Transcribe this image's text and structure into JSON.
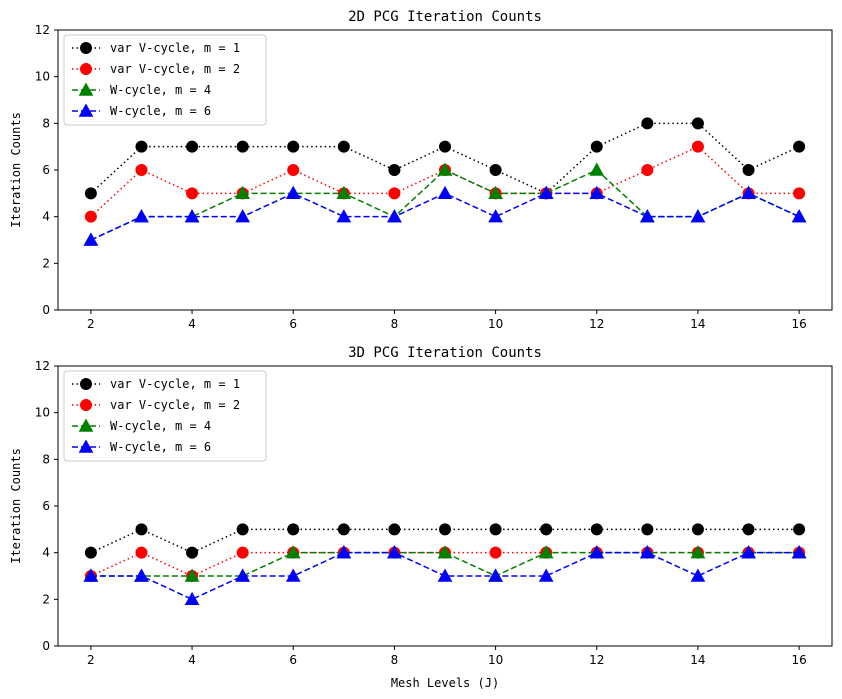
{
  "chart_data": [
    {
      "type": "line",
      "title": "2D PCG Iteration Counts",
      "xlabel": "",
      "ylabel": "Iteration Counts",
      "x": [
        2,
        3,
        4,
        5,
        6,
        7,
        8,
        9,
        10,
        11,
        12,
        13,
        14,
        15,
        16
      ],
      "xticks": [
        2,
        4,
        6,
        8,
        10,
        12,
        14,
        16
      ],
      "yticks": [
        0,
        2,
        4,
        6,
        8,
        10,
        12
      ],
      "xlim": [
        1.35,
        16.65
      ],
      "ylim": [
        0,
        12
      ],
      "grid": false,
      "legend_position": "top-left",
      "series": [
        {
          "name": "var V-cycle, m = 1",
          "color": "#000000",
          "linestyle": "dotted",
          "marker": "circle",
          "values": [
            5,
            7,
            7,
            7,
            7,
            7,
            6,
            7,
            6,
            5,
            7,
            8,
            8,
            6,
            7
          ]
        },
        {
          "name": "var V-cycle, m = 2",
          "color": "#ff0000",
          "linestyle": "dotted",
          "marker": "circle",
          "values": [
            4,
            6,
            5,
            5,
            6,
            5,
            5,
            6,
            5,
            5,
            5,
            6,
            7,
            5,
            5
          ]
        },
        {
          "name": "W-cycle, m = 4",
          "color": "#008000",
          "linestyle": "dashed",
          "marker": "triangle",
          "values": [
            3,
            4,
            4,
            5,
            5,
            5,
            4,
            6,
            5,
            5,
            6,
            4,
            4,
            5,
            4
          ]
        },
        {
          "name": "W-cycle, m = 6",
          "color": "#0000ff",
          "linestyle": "dashed",
          "marker": "triangle",
          "values": [
            3,
            4,
            4,
            4,
            5,
            4,
            4,
            5,
            4,
            5,
            5,
            4,
            4,
            5,
            4
          ]
        }
      ]
    },
    {
      "type": "line",
      "title": "3D PCG Iteration Counts",
      "xlabel": "Mesh Levels (J)",
      "ylabel": "Iteration Counts",
      "x": [
        2,
        3,
        4,
        5,
        6,
        7,
        8,
        9,
        10,
        11,
        12,
        13,
        14,
        15,
        16
      ],
      "xticks": [
        2,
        4,
        6,
        8,
        10,
        12,
        14,
        16
      ],
      "yticks": [
        0,
        2,
        4,
        6,
        8,
        10,
        12
      ],
      "xlim": [
        1.35,
        16.65
      ],
      "ylim": [
        0,
        12
      ],
      "grid": false,
      "legend_position": "top-left",
      "series": [
        {
          "name": "var V-cycle, m = 1",
          "color": "#000000",
          "linestyle": "dotted",
          "marker": "circle",
          "values": [
            4,
            5,
            4,
            5,
            5,
            5,
            5,
            5,
            5,
            5,
            5,
            5,
            5,
            5,
            5
          ]
        },
        {
          "name": "var V-cycle, m = 2",
          "color": "#ff0000",
          "linestyle": "dotted",
          "marker": "circle",
          "values": [
            3,
            4,
            3,
            4,
            4,
            4,
            4,
            4,
            4,
            4,
            4,
            4,
            4,
            4,
            4
          ]
        },
        {
          "name": "W-cycle, m = 4",
          "color": "#008000",
          "linestyle": "dashed",
          "marker": "triangle",
          "values": [
            3,
            3,
            3,
            3,
            4,
            4,
            4,
            4,
            3,
            4,
            4,
            4,
            4,
            4,
            4
          ]
        },
        {
          "name": "W-cycle, m = 6",
          "color": "#0000ff",
          "linestyle": "dashed",
          "marker": "triangle",
          "values": [
            3,
            3,
            2,
            3,
            3,
            4,
            4,
            3,
            3,
            3,
            4,
            4,
            3,
            4,
            4
          ]
        }
      ]
    }
  ]
}
